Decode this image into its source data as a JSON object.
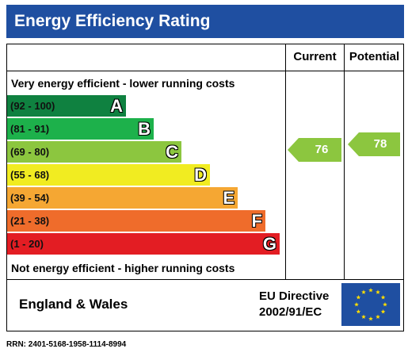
{
  "header": {
    "title": "Energy Efficiency Rating"
  },
  "columns": {
    "current": "Current",
    "potential": "Potential"
  },
  "notes": {
    "top": "Very energy efficient - lower running costs",
    "bottom": "Not energy efficient - higher running costs"
  },
  "chart_data": {
    "type": "bar",
    "title": "Energy Efficiency Rating",
    "bands": [
      {
        "letter": "A",
        "range": "(92 - 100)",
        "min": 92,
        "max": 100,
        "color": "#0f8140"
      },
      {
        "letter": "B",
        "range": "(81 - 91)",
        "min": 81,
        "max": 91,
        "color": "#1db14b"
      },
      {
        "letter": "C",
        "range": "(69 - 80)",
        "min": 69,
        "max": 80,
        "color": "#8cc63f"
      },
      {
        "letter": "D",
        "range": "(55 - 68)",
        "min": 55,
        "max": 68,
        "color": "#f1ec21"
      },
      {
        "letter": "E",
        "range": "(39 - 54)",
        "min": 39,
        "max": 54,
        "color": "#f5a733"
      },
      {
        "letter": "F",
        "range": "(21 - 38)",
        "min": 21,
        "max": 38,
        "color": "#ef6c2b"
      },
      {
        "letter": "G",
        "range": "(1 - 20)",
        "min": 1,
        "max": 20,
        "color": "#e31d23"
      }
    ],
    "current": {
      "value": 76,
      "label": "76",
      "color": "#8cc63f"
    },
    "potential": {
      "value": 78,
      "label": "78",
      "color": "#8cc63f"
    }
  },
  "footer": {
    "region": "England & Wales",
    "directive_line1": "EU Directive",
    "directive_line2": "2002/91/EC",
    "flag_color": "#1f4fa1",
    "star_color": "#ffdd00"
  },
  "rrn": "RRN: 2401-5168-1958-1114-8994"
}
